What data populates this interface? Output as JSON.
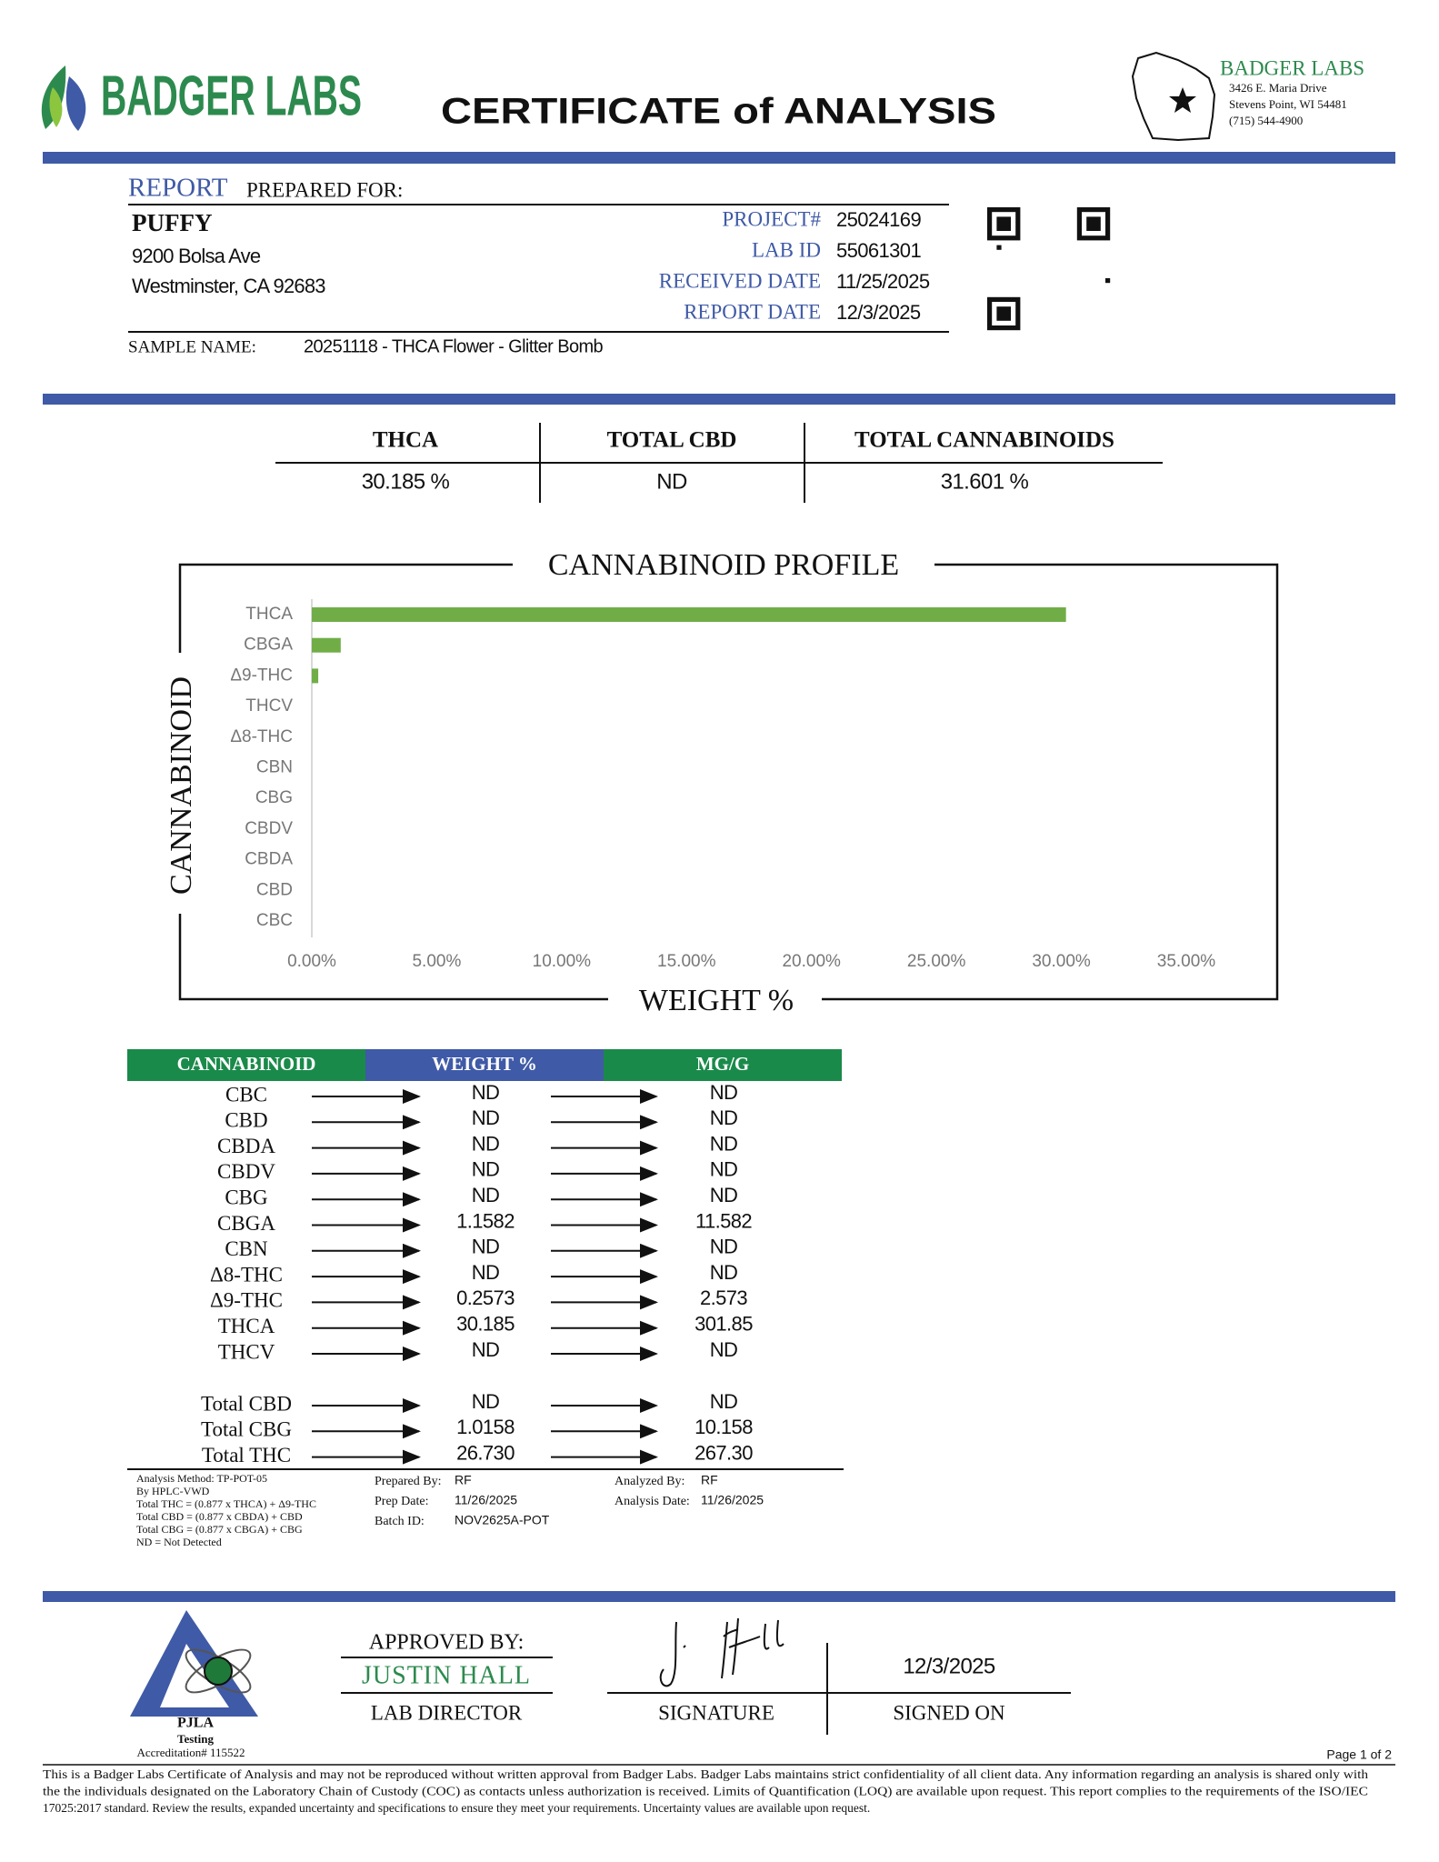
{
  "header": {
    "logo_text": "BADGER LABS",
    "title": "CERTIFICATE of ANALYSIS",
    "lab_name": "BADGER LABS",
    "address": [
      "3426 E. Maria Drive",
      "Stevens Point, WI 54481",
      "(715) 544-4900"
    ]
  },
  "report": {
    "label": "REPORT",
    "label_rest": "PREPARED FOR:",
    "client": "PUFFY",
    "client_address": [
      "9200 Bolsa Ave",
      "Westminster, CA 92683"
    ],
    "fields": [
      {
        "label": "PROJECT#",
        "value": "25024169"
      },
      {
        "label": "LAB ID",
        "value": "55061301"
      },
      {
        "label": "RECEIVED DATE",
        "value": "11/25/2025"
      },
      {
        "label": "REPORT DATE",
        "value": "12/3/2025"
      }
    ],
    "sample_label": "SAMPLE NAME:",
    "sample_name": "20251118 - THCA Flower - Glitter Bomb"
  },
  "summary": [
    {
      "label": "THCA",
      "value": "30.185 %"
    },
    {
      "label": "TOTAL CBD",
      "value": "ND"
    },
    {
      "label": "TOTAL CANNABINOIDS",
      "value": "31.601 %"
    }
  ],
  "chart_data": {
    "type": "hbar",
    "title": "CANNABINOID PROFILE",
    "x_label": "WEIGHT %",
    "y_label": "CANNABINOID",
    "categories": [
      "THCA",
      "CBGA",
      "Δ9-THC",
      "THCV",
      "Δ8-THC",
      "CBN",
      "CBG",
      "CBDV",
      "CBDA",
      "CBD",
      "CBC"
    ],
    "values": [
      30.185,
      1.1582,
      0.2573,
      0,
      0,
      0,
      0,
      0,
      0,
      0,
      0
    ],
    "color": "#70ad47",
    "xlim": [
      0,
      35
    ],
    "xticks": [
      {
        "value": 0,
        "label": "0.00%"
      },
      {
        "value": 5,
        "label": "5.00%"
      },
      {
        "value": 10,
        "label": "10.00%"
      },
      {
        "value": 15,
        "label": "15.00%"
      },
      {
        "value": 20,
        "label": "20.00%"
      },
      {
        "value": 25,
        "label": "25.00%"
      },
      {
        "value": 30,
        "label": "30.00%"
      },
      {
        "value": 35,
        "label": "35.00%"
      }
    ]
  },
  "table": {
    "headers": [
      "CANNABINOID",
      "WEIGHT %",
      "MG/G"
    ],
    "rows": [
      [
        "CBC",
        "ND",
        "ND"
      ],
      [
        "CBD",
        "ND",
        "ND"
      ],
      [
        "CBDA",
        "ND",
        "ND"
      ],
      [
        "CBDV",
        "ND",
        "ND"
      ],
      [
        "CBG",
        "ND",
        "ND"
      ],
      [
        "CBGA",
        "1.1582",
        "11.582"
      ],
      [
        "CBN",
        "ND",
        "ND"
      ],
      [
        "Δ8-THC",
        "ND",
        "ND"
      ],
      [
        "Δ9-THC",
        "0.2573",
        "2.573"
      ],
      [
        "THCA",
        "30.185",
        "301.85"
      ],
      [
        "THCV",
        "ND",
        "ND"
      ]
    ],
    "totals": [
      [
        "Total CBD",
        "ND",
        "ND"
      ],
      [
        "Total CBG",
        "1.0158",
        "10.158"
      ],
      [
        "Total THC",
        "26.730",
        "267.30"
      ]
    ]
  },
  "notes": [
    "Analysis Method: TP-POT-05",
    "By HPLC-VWD",
    "Total THC = (0.877 x  THCA) + Δ9-THC",
    "Total CBD = (0.877 x  CBDA) + CBD",
    "Total CBG = (0.877 x  CBGA) + CBG",
    "ND = Not Detected"
  ],
  "prep": [
    {
      "label": "Prepared By:",
      "value": "RF"
    },
    {
      "label": "Prep Date:",
      "value": "11/26/2025"
    },
    {
      "label": "Batch ID:",
      "value": "NOV2625A-POT"
    }
  ],
  "analysis": [
    {
      "label": "Analyzed By:",
      "value": "RF"
    },
    {
      "label": "Analysis Date:",
      "value": "11/26/2025"
    }
  ],
  "footer": {
    "pjla": "PJLA",
    "pjla_sub": "Testing",
    "accreditation": "Accreditation# 115522",
    "approved_by": "APPROVED BY:",
    "approver": "JUSTIN HALL",
    "approver_title": "LAB DIRECTOR",
    "signature_label": "SIGNATURE",
    "signed_date": "12/3/2025",
    "signed_on_label": "SIGNED ON",
    "page": "Page 1 of 2",
    "disclaimer": [
      "This is a Badger Labs Certificate of Analysis and may not be reproduced without written approval from Badger Labs. Badger Labs maintains strict confidentiality of all client data. Any information regarding an analysis is shared only with",
      "the the individuals designated on the Laboratory Chain of Custody (COC) as contacts unless authorization is received. Limits of Quantification (LOQ) are available upon request. This report complies to the requirements of the ISO/IEC",
      "17025:2017 standard. Review the results, expanded uncertainty and specifications to ensure they meet your requirements. Uncertainty values are available upon request."
    ]
  }
}
